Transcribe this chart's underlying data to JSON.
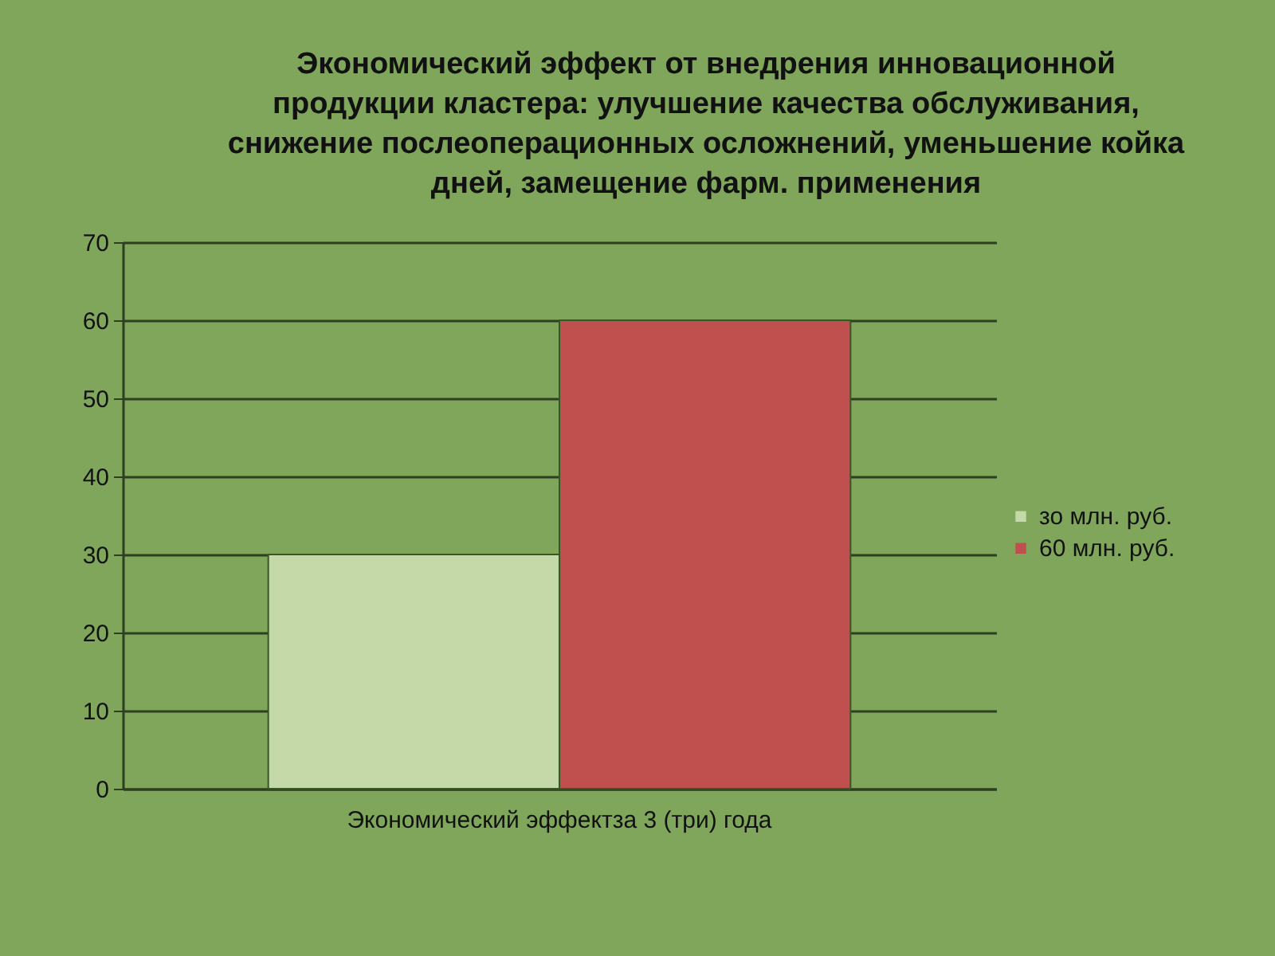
{
  "chart_data": {
    "type": "bar",
    "title": "Экономический эффект от внедрения инновационной продукции кластера: улучшение качества обслуживания, снижение послеоперационных осложнений, уменьшение койка дней, замещение фарм. применения",
    "categories": [
      "Экономический эффектза 3 (три) года"
    ],
    "series": [
      {
        "name": "зо млн. руб.",
        "color": "#c4d8a8",
        "values": [
          30
        ]
      },
      {
        "name": "60 млн. руб.",
        "color": "#c0504d",
        "values": [
          60
        ]
      }
    ],
    "ylim": [
      0,
      70
    ],
    "yticks": [
      0,
      10,
      20,
      30,
      40,
      50,
      60,
      70
    ],
    "grid": "y",
    "legend": "right"
  }
}
